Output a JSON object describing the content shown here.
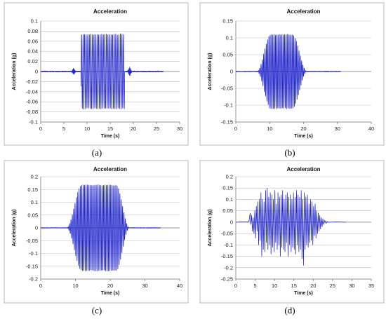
{
  "chart_data": [
    {
      "label": "(a)",
      "type": "line",
      "title": "Acceleration",
      "xlabel": "Time (s)",
      "ylabel": "Acceleration (g)",
      "xlim": [
        0,
        30
      ],
      "ylim": [
        -0.1,
        0.1
      ],
      "xticks": [
        0,
        5,
        10,
        15,
        20,
        25,
        30
      ],
      "yticks": [
        -0.1,
        -0.08,
        -0.06,
        -0.04,
        -0.02,
        0,
        0.02,
        0.04,
        0.06,
        0.08,
        0.1
      ],
      "grid": "horizontal",
      "series": [
        {
          "color": "#1f24c9",
          "duration": 26.5,
          "plateau_start": 8.7,
          "plateau_end": 18.1,
          "peak_amplitude": 0.074,
          "cycles": 28,
          "precursor_time": 7.1,
          "precursor_amplitude": 0.006,
          "tail_time": 19.2,
          "tail_amplitude": 0.008,
          "noise_amplitude": 0.002
        }
      ]
    },
    {
      "label": "(b)",
      "type": "line",
      "title": "Acceleration",
      "xlabel": "Time (s)",
      "ylabel": "Acceleration (g)",
      "xlim": [
        0,
        40
      ],
      "ylim": [
        -0.15,
        0.15
      ],
      "xticks": [
        0,
        10,
        20,
        30,
        40
      ],
      "yticks": [
        -0.15,
        -0.1,
        -0.05,
        0,
        0.05,
        0.1,
        0.15
      ],
      "grid": "horizontal",
      "series": [
        {
          "color": "#1f24c9",
          "duration": 31,
          "ramp_start": 6.3,
          "plateau_start": 10.3,
          "plateau_end": 16.7,
          "ramp_end": 21,
          "peak_amplitude": 0.11,
          "cycles": 38,
          "noise_amplitude": 0.002
        }
      ]
    },
    {
      "label": "(c)",
      "type": "line",
      "title": "Acceleration",
      "xlabel": "Time (s)",
      "ylabel": "Acceleration (g)",
      "xlim": [
        0,
        40
      ],
      "ylim": [
        -0.2,
        0.2
      ],
      "xticks": [
        0,
        10,
        20,
        30,
        40
      ],
      "yticks": [
        -0.2,
        -0.15,
        -0.1,
        -0.05,
        0,
        0.05,
        0.1,
        0.15,
        0.2
      ],
      "grid": "horizontal",
      "series": [
        {
          "color": "#1f24c9",
          "duration": 34.5,
          "ramp_start": 7.5,
          "plateau_start": 11.8,
          "plateau_end": 21.7,
          "ramp_end": 25.5,
          "peak_amplitude": 0.168,
          "cycles": 46,
          "noise_amplitude": 0.002
        }
      ]
    },
    {
      "label": "(d)",
      "type": "line",
      "title": "Acceleration",
      "xlabel": "Time (s)",
      "ylabel": "Acceleration (g)",
      "xlim": [
        0,
        35
      ],
      "ylim": [
        -0.25,
        0.2
      ],
      "xticks": [
        0,
        5,
        10,
        15,
        20,
        25,
        30,
        35
      ],
      "yticks": [
        -0.25,
        -0.2,
        -0.15,
        -0.1,
        -0.05,
        0,
        0.05,
        0.1,
        0.15,
        0.2
      ],
      "grid": "horizontal",
      "series": [
        {
          "color": "#1f24c9",
          "duration": 28.5,
          "points": [
            [
              0,
              0
            ],
            [
              1.5,
              0.001
            ],
            [
              3,
              0.001
            ],
            [
              3.4,
              0.004
            ],
            [
              3.7,
              0.04
            ],
            [
              3.9,
              -0.01
            ],
            [
              4.1,
              0.03
            ],
            [
              4.3,
              -0.04
            ],
            [
              4.5,
              0.02
            ],
            [
              4.7,
              -0.05
            ],
            [
              4.9,
              0.05
            ],
            [
              5.1,
              -0.07
            ],
            [
              5.3,
              0.07
            ],
            [
              5.5,
              -0.04
            ],
            [
              5.7,
              0.09
            ],
            [
              5.9,
              -0.1
            ],
            [
              6.1,
              0.1
            ],
            [
              6.3,
              -0.08
            ],
            [
              6.5,
              0.13
            ],
            [
              6.7,
              -0.15
            ],
            [
              6.9,
              0.1
            ],
            [
              7.1,
              -0.12
            ],
            [
              7.3,
              0.09
            ],
            [
              7.5,
              -0.13
            ],
            [
              7.7,
              0.14
            ],
            [
              7.9,
              -0.09
            ],
            [
              8.1,
              0.15
            ],
            [
              8.3,
              -0.12
            ],
            [
              8.5,
              0.11
            ],
            [
              8.7,
              -0.1
            ],
            [
              8.9,
              0.13
            ],
            [
              9.1,
              -0.14
            ],
            [
              9.3,
              0.12
            ],
            [
              9.5,
              -0.11
            ],
            [
              9.7,
              0.1
            ],
            [
              9.9,
              -0.13
            ],
            [
              10.1,
              0.14
            ],
            [
              10.3,
              -0.09
            ],
            [
              10.5,
              0.08
            ],
            [
              10.7,
              -0.12
            ],
            [
              10.9,
              0.13
            ],
            [
              11.1,
              -0.1
            ],
            [
              11.3,
              0.11
            ],
            [
              11.5,
              -0.15
            ],
            [
              11.7,
              0.12
            ],
            [
              11.9,
              -0.11
            ],
            [
              12.1,
              0.14
            ],
            [
              12.3,
              -0.12
            ],
            [
              12.5,
              0.1
            ],
            [
              12.7,
              -0.13
            ],
            [
              12.9,
              0.12
            ],
            [
              13.1,
              -0.09
            ],
            [
              13.3,
              0.13
            ],
            [
              13.5,
              -0.15
            ],
            [
              13.7,
              0.11
            ],
            [
              13.9,
              -0.1
            ],
            [
              14.1,
              0.12
            ],
            [
              14.3,
              -0.13
            ],
            [
              14.5,
              0.1
            ],
            [
              14.7,
              -0.11
            ],
            [
              14.9,
              0.13
            ],
            [
              15.1,
              -0.12
            ],
            [
              15.3,
              0.11
            ],
            [
              15.5,
              -0.14
            ],
            [
              15.7,
              0.14
            ],
            [
              15.9,
              -0.1
            ],
            [
              16.1,
              0.12
            ],
            [
              16.3,
              -0.13
            ],
            [
              16.5,
              0.11
            ],
            [
              16.7,
              -0.12
            ],
            [
              16.9,
              0.14
            ],
            [
              17.1,
              -0.16
            ],
            [
              17.3,
              0.1
            ],
            [
              17.5,
              -0.19
            ],
            [
              17.7,
              0.13
            ],
            [
              17.9,
              -0.12
            ],
            [
              18.1,
              0.11
            ],
            [
              18.3,
              -0.1
            ],
            [
              18.5,
              0.12
            ],
            [
              18.7,
              -0.11
            ],
            [
              18.9,
              0.08
            ],
            [
              19.1,
              -0.09
            ],
            [
              19.3,
              0.1
            ],
            [
              19.5,
              -0.08
            ],
            [
              19.7,
              0.09
            ],
            [
              19.9,
              -0.1
            ],
            [
              20.1,
              0.07
            ],
            [
              20.3,
              -0.06
            ],
            [
              20.5,
              0.08
            ],
            [
              20.7,
              -0.07
            ],
            [
              20.9,
              0.05
            ],
            [
              21.1,
              -0.05
            ],
            [
              21.3,
              0.04
            ],
            [
              21.5,
              -0.04
            ],
            [
              21.7,
              0.03
            ],
            [
              21.9,
              -0.03
            ],
            [
              22.1,
              0.02
            ],
            [
              22.3,
              -0.02
            ],
            [
              22.5,
              0.015
            ],
            [
              22.7,
              -0.01
            ],
            [
              23,
              0.008
            ],
            [
              23.3,
              -0.005
            ],
            [
              23.6,
              0.003
            ],
            [
              24,
              0
            ],
            [
              26,
              0.001
            ],
            [
              28.5,
              0
            ]
          ]
        }
      ]
    }
  ]
}
